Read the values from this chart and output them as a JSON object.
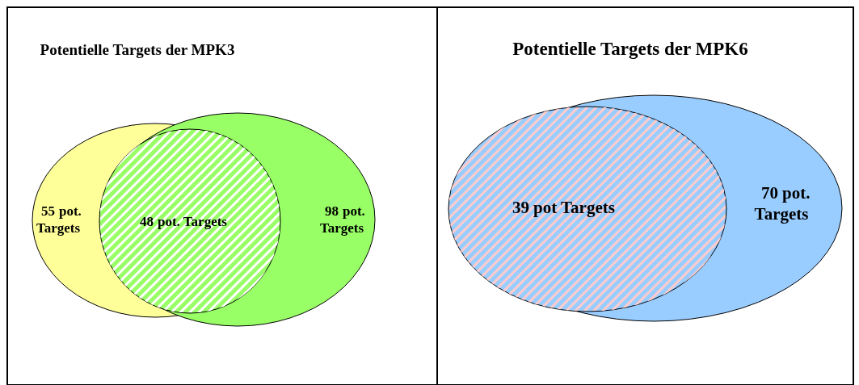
{
  "chart_data": [
    {
      "type": "other",
      "title": "Potentielle Targets der MPK3",
      "categories": [
        "pot. Targets",
        "pot. Targets",
        "pot. Targets"
      ],
      "values": [
        55,
        48,
        98
      ],
      "colors": [
        "#ffff99",
        "#99ff66",
        "#99ff66"
      ],
      "data_labels": true
    },
    {
      "type": "other",
      "title": "Potentielle Targets der MPK6",
      "categories": [
        "pot Targets",
        "pot. Targets"
      ],
      "values": [
        39,
        70
      ],
      "colors": [
        "#99ccff",
        "#99ccff"
      ],
      "data_labels": true
    }
  ]
}
